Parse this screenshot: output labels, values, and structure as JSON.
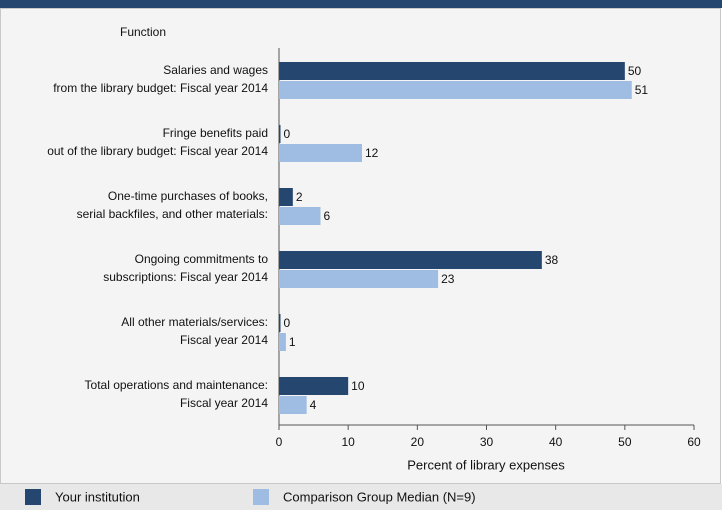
{
  "chart_data": {
    "type": "bar",
    "orientation": "horizontal",
    "y_axis_title": "Function",
    "x_axis_title": "Percent of library expenses",
    "categories": [
      "Salaries and wages\nfrom the library budget: Fiscal year 2014",
      "Fringe benefits paid\nout of the library budget: Fiscal year 2014",
      "One-time purchases of books,\nserial backfiles, and other materials:",
      "Ongoing commitments to\nsubscriptions: Fiscal year 2014",
      "All other materials/services:\nFiscal year 2014",
      "Total operations and maintenance:\nFiscal year 2014"
    ],
    "series": [
      {
        "name": "Your institution",
        "color": "#25476f",
        "values": [
          50,
          0,
          2,
          38,
          0,
          10
        ]
      },
      {
        "name": "Comparison Group Median (N=9)",
        "color": "#9fbde3",
        "values": [
          51,
          12,
          6,
          23,
          1,
          4
        ]
      }
    ],
    "xlim": [
      0,
      60
    ],
    "xticks": [
      0,
      10,
      20,
      30,
      40,
      50,
      60
    ]
  }
}
